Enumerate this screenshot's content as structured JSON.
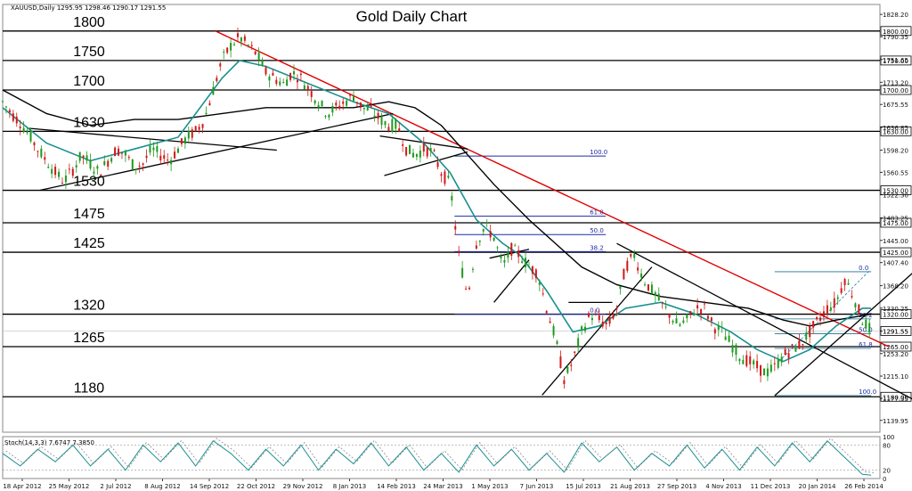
{
  "chart_data": {
    "type": "candlestick",
    "title": "Gold Daily Chart",
    "symbol_header": "XAUUSD,Daily  1295.95 1298.46 1290.17 1291.55",
    "ylim": [
      1120,
      1845
    ],
    "price_ticks": [
      "1828.20",
      "1790.35",
      "1751.65",
      "1713.20",
      "1675.55",
      "1636.85",
      "1598.20",
      "1560.55",
      "1522.30",
      "1483.25",
      "1445.00",
      "1407.40",
      "1368.20",
      "1330.25",
      "1291.55",
      "1253.20",
      "1215.10",
      "1177.35",
      "1139.95"
    ],
    "date_labels": [
      "18 Apr 2012",
      "25 May 2012",
      "2 Jul 2012",
      "8 Aug 2012",
      "14 Sep 2012",
      "22 Oct 2012",
      "29 Nov 2012",
      "8 Jan 2013",
      "14 Feb 2013",
      "24 Mar 2013",
      "1 May 2013",
      "7 Jun 2013",
      "15 Jul 2013",
      "21 Aug 2013",
      "27 Sep 2013",
      "4 Nov 2013",
      "11 Dec 2013",
      "20 Jan 2014",
      "26 Feb 2014"
    ],
    "levels": [
      {
        "value": 1800,
        "label": "1800",
        "tag": "1800.00"
      },
      {
        "value": 1750,
        "label": "1750",
        "tag": "1750.00"
      },
      {
        "value": 1700,
        "label": "1700",
        "tag": "1700.00"
      },
      {
        "value": 1630,
        "label": "1630",
        "tag": "1630.00"
      },
      {
        "value": 1530,
        "label": "1530",
        "tag": "1530.00"
      },
      {
        "value": 1475,
        "label": "1475",
        "tag": "1475.00"
      },
      {
        "value": 1425,
        "label": "1425",
        "tag": "1425.00"
      },
      {
        "value": 1320,
        "label": "1320",
        "tag": "1320.00"
      },
      {
        "value": 1265,
        "label": "1265",
        "tag": "1265.00"
      },
      {
        "value": 1180,
        "label": "1180",
        "tag": "1180.00"
      }
    ],
    "current_price": "1291.55",
    "fib_left": [
      {
        "label": "100.0",
        "value": 1588
      },
      {
        "label": "61.8",
        "value": 1486
      },
      {
        "label": "50.0",
        "value": 1455
      },
      {
        "label": "38.2",
        "value": 1426
      },
      {
        "label": "0.0",
        "value": 1320
      }
    ],
    "fib_right": [
      {
        "label": "0.0",
        "value": 1392
      },
      {
        "label": "38.2",
        "value": 1312
      },
      {
        "label": "50.0",
        "value": 1287
      },
      {
        "label": "61.8",
        "value": 1262
      },
      {
        "label": "100.0",
        "value": 1182
      }
    ],
    "price_path": [
      [
        0,
        1680
      ],
      [
        4,
        1660
      ],
      [
        8,
        1645
      ],
      [
        12,
        1625
      ],
      [
        16,
        1600
      ],
      [
        20,
        1580
      ],
      [
        24,
        1560
      ],
      [
        28,
        1545
      ],
      [
        32,
        1565
      ],
      [
        36,
        1590
      ],
      [
        40,
        1575
      ],
      [
        44,
        1560
      ],
      [
        48,
        1580
      ],
      [
        52,
        1600
      ],
      [
        56,
        1590
      ],
      [
        60,
        1570
      ],
      [
        64,
        1575
      ],
      [
        68,
        1600
      ],
      [
        72,
        1590
      ],
      [
        76,
        1580
      ],
      [
        80,
        1600
      ],
      [
        84,
        1620
      ],
      [
        88,
        1630
      ],
      [
        92,
        1650
      ],
      [
        96,
        1700
      ],
      [
        100,
        1750
      ],
      [
        104,
        1775
      ],
      [
        108,
        1790
      ],
      [
        112,
        1775
      ],
      [
        116,
        1760
      ],
      [
        120,
        1730
      ],
      [
        124,
        1720
      ],
      [
        128,
        1710
      ],
      [
        132,
        1730
      ],
      [
        136,
        1720
      ],
      [
        140,
        1700
      ],
      [
        144,
        1680
      ],
      [
        148,
        1660
      ],
      [
        152,
        1670
      ],
      [
        156,
        1680
      ],
      [
        160,
        1690
      ],
      [
        164,
        1670
      ],
      [
        168,
        1665
      ],
      [
        172,
        1650
      ],
      [
        176,
        1640
      ],
      [
        180,
        1640
      ],
      [
        184,
        1600
      ],
      [
        188,
        1590
      ],
      [
        192,
        1600
      ],
      [
        196,
        1595
      ],
      [
        200,
        1560
      ],
      [
        204,
        1540
      ],
      [
        208,
        1420
      ],
      [
        212,
        1350
      ],
      [
        216,
        1440
      ],
      [
        220,
        1470
      ],
      [
        224,
        1450
      ],
      [
        228,
        1400
      ],
      [
        232,
        1430
      ],
      [
        236,
        1420
      ],
      [
        240,
        1400
      ],
      [
        244,
        1390
      ],
      [
        248,
        1330
      ],
      [
        252,
        1280
      ],
      [
        256,
        1210
      ],
      [
        260,
        1240
      ],
      [
        264,
        1290
      ],
      [
        268,
        1320
      ],
      [
        272,
        1310
      ],
      [
        276,
        1300
      ],
      [
        280,
        1330
      ],
      [
        284,
        1400
      ],
      [
        288,
        1420
      ],
      [
        292,
        1380
      ],
      [
        296,
        1360
      ],
      [
        300,
        1340
      ],
      [
        304,
        1320
      ],
      [
        308,
        1300
      ],
      [
        312,
        1310
      ],
      [
        316,
        1330
      ],
      [
        320,
        1330
      ],
      [
        324,
        1300
      ],
      [
        328,
        1290
      ],
      [
        332,
        1270
      ],
      [
        336,
        1250
      ],
      [
        340,
        1240
      ],
      [
        344,
        1230
      ],
      [
        348,
        1220
      ],
      [
        352,
        1230
      ],
      [
        356,
        1250
      ],
      [
        360,
        1260
      ],
      [
        364,
        1270
      ],
      [
        368,
        1290
      ],
      [
        372,
        1310
      ],
      [
        376,
        1330
      ],
      [
        380,
        1340
      ],
      [
        384,
        1380
      ],
      [
        388,
        1350
      ],
      [
        392,
        1310
      ],
      [
        396,
        1292
      ]
    ],
    "ma_teal": [
      [
        0,
        1670
      ],
      [
        20,
        1610
      ],
      [
        40,
        1580
      ],
      [
        60,
        1600
      ],
      [
        80,
        1620
      ],
      [
        100,
        1720
      ],
      [
        108,
        1750
      ],
      [
        120,
        1740
      ],
      [
        140,
        1710
      ],
      [
        160,
        1680
      ],
      [
        176,
        1660
      ],
      [
        192,
        1610
      ],
      [
        204,
        1560
      ],
      [
        216,
        1480
      ],
      [
        228,
        1440
      ],
      [
        236,
        1420
      ],
      [
        248,
        1360
      ],
      [
        260,
        1290
      ],
      [
        272,
        1300
      ],
      [
        284,
        1330
      ],
      [
        300,
        1340
      ],
      [
        316,
        1320
      ],
      [
        332,
        1290
      ],
      [
        344,
        1260
      ],
      [
        356,
        1240
      ],
      [
        368,
        1260
      ],
      [
        380,
        1300
      ],
      [
        392,
        1330
      ],
      [
        396,
        1330
      ]
    ],
    "ma_black": [
      [
        0,
        1700
      ],
      [
        20,
        1660
      ],
      [
        40,
        1640
      ],
      [
        60,
        1650
      ],
      [
        80,
        1650
      ],
      [
        100,
        1660
      ],
      [
        120,
        1670
      ],
      [
        140,
        1670
      ],
      [
        160,
        1670
      ],
      [
        176,
        1680
      ],
      [
        188,
        1670
      ],
      [
        200,
        1640
      ],
      [
        212,
        1590
      ],
      [
        224,
        1540
      ],
      [
        240,
        1480
      ],
      [
        252,
        1440
      ],
      [
        264,
        1400
      ],
      [
        280,
        1370
      ],
      [
        300,
        1350
      ],
      [
        320,
        1340
      ],
      [
        340,
        1330
      ],
      [
        356,
        1310
      ],
      [
        368,
        1300
      ],
      [
        380,
        1310
      ],
      [
        396,
        1320
      ]
    ],
    "stoch_label": "Stoch(14,3,3) 7.6747 7.3850",
    "stoch_ticks": [
      "100",
      "80",
      "20",
      "0"
    ],
    "stoch_path": [
      [
        0,
        60
      ],
      [
        8,
        30
      ],
      [
        16,
        70
      ],
      [
        24,
        40
      ],
      [
        32,
        80
      ],
      [
        40,
        30
      ],
      [
        48,
        70
      ],
      [
        56,
        20
      ],
      [
        64,
        80
      ],
      [
        72,
        40
      ],
      [
        80,
        85
      ],
      [
        88,
        30
      ],
      [
        96,
        90
      ],
      [
        104,
        60
      ],
      [
        112,
        20
      ],
      [
        120,
        70
      ],
      [
        128,
        30
      ],
      [
        136,
        80
      ],
      [
        144,
        20
      ],
      [
        152,
        70
      ],
      [
        160,
        35
      ],
      [
        168,
        85
      ],
      [
        176,
        30
      ],
      [
        184,
        75
      ],
      [
        192,
        20
      ],
      [
        200,
        60
      ],
      [
        208,
        15
      ],
      [
        216,
        80
      ],
      [
        224,
        30
      ],
      [
        232,
        70
      ],
      [
        240,
        20
      ],
      [
        248,
        60
      ],
      [
        256,
        15
      ],
      [
        264,
        85
      ],
      [
        272,
        40
      ],
      [
        280,
        75
      ],
      [
        288,
        20
      ],
      [
        296,
        60
      ],
      [
        304,
        30
      ],
      [
        312,
        80
      ],
      [
        320,
        25
      ],
      [
        328,
        70
      ],
      [
        336,
        20
      ],
      [
        344,
        75
      ],
      [
        352,
        30
      ],
      [
        360,
        85
      ],
      [
        368,
        40
      ],
      [
        376,
        90
      ],
      [
        384,
        50
      ],
      [
        392,
        10
      ],
      [
        396,
        8
      ]
    ]
  }
}
